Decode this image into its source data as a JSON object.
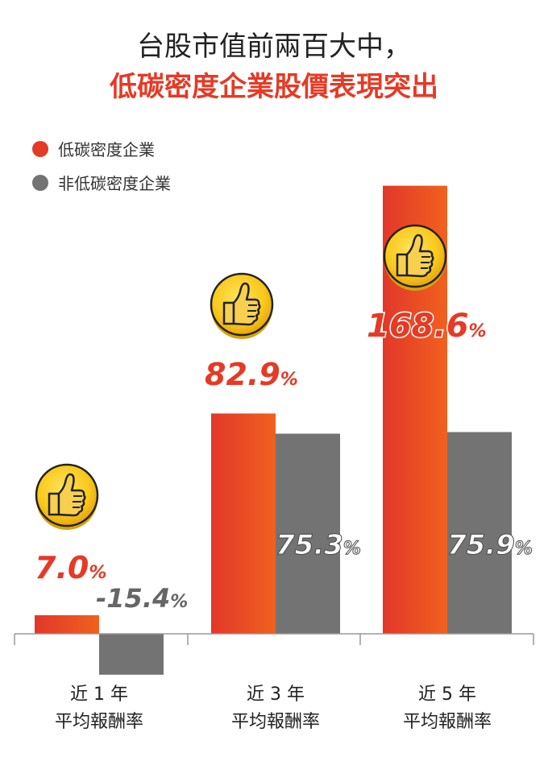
{
  "title": {
    "line1": "台股市值前兩百大中，",
    "line2": "低碳密度企業股價表現突出"
  },
  "colors": {
    "low_carbon": "#e53a25",
    "non_low_carbon": "#737373",
    "highlight_text": "#e53a25"
  },
  "chart_data": {
    "type": "bar",
    "categories": [
      {
        "line1": "近 1 年",
        "line2": "平均報酬率"
      },
      {
        "line1": "近 3 年",
        "line2": "平均報酬率"
      },
      {
        "line1": "近 5 年",
        "line2": "平均報酬率"
      }
    ],
    "series": [
      {
        "name": "低碳密度企業",
        "values": [
          7.0,
          82.9,
          168.6
        ],
        "labels": [
          "7.0",
          "82.9",
          "168.6"
        ]
      },
      {
        "name": "非低碳密度企業",
        "values": [
          -15.4,
          75.3,
          75.9
        ],
        "labels": [
          "-15.4",
          "75.3",
          "75.9"
        ]
      }
    ],
    "unit": "%",
    "legend": "top-left",
    "ylim": [
      -20,
      180
    ],
    "grid": false,
    "annotations": [
      "thumbs-up-icon over each 低碳密度企業 bar"
    ]
  }
}
